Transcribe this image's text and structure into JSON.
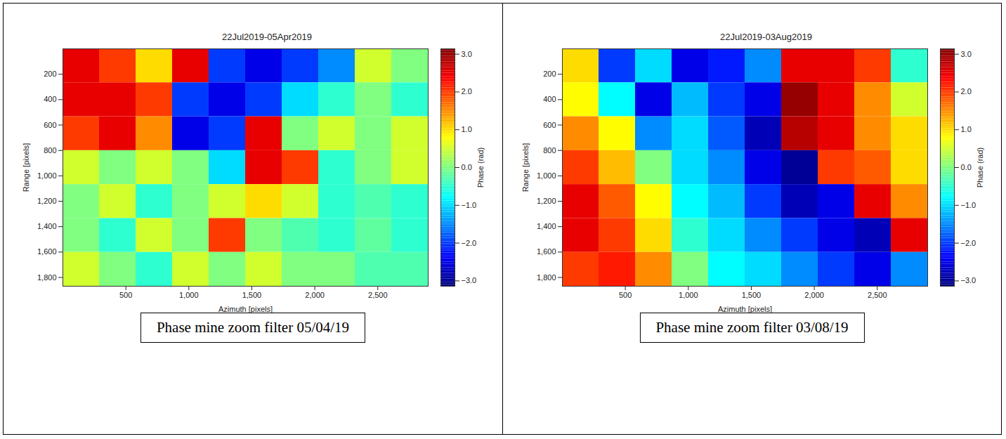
{
  "chart_data": [
    {
      "type": "heatmap",
      "title": "22Jul2019-05Apr2019",
      "xlabel": "Azimuth [pixels]",
      "ylabel": "Range [pixels]",
      "xlim": [
        0,
        2900
      ],
      "ylim": [
        0,
        1869
      ],
      "xticks": [
        500,
        1000,
        1500,
        2000,
        2500
      ],
      "yticks": [
        200,
        400,
        600,
        800,
        1000,
        1200,
        1400,
        1600,
        1800
      ],
      "color": "jet",
      "x_bins": [
        0,
        290,
        580,
        870,
        1160,
        1450,
        1740,
        2030,
        2320,
        2610,
        2900
      ],
      "y_bins": [
        0,
        267,
        534,
        801,
        1068,
        1335,
        1602,
        1869
      ],
      "values": [
        [
          2.5,
          2.0,
          1.0,
          2.5,
          -2.0,
          -2.5,
          -2.0,
          -1.5,
          0.5,
          0.0
        ],
        [
          2.5,
          2.5,
          2.0,
          -2.0,
          -2.5,
          -2.0,
          -1.0,
          -0.5,
          0.0,
          -0.5
        ],
        [
          2.0,
          2.5,
          1.5,
          -2.5,
          -2.0,
          2.5,
          0.0,
          0.5,
          0.0,
          0.5
        ],
        [
          0.5,
          0.0,
          0.5,
          0.0,
          -1.0,
          2.5,
          2.0,
          -0.5,
          0.0,
          0.5
        ],
        [
          0.0,
          0.5,
          -0.5,
          0.0,
          0.5,
          1.0,
          0.5,
          -0.5,
          -0.3,
          -0.5
        ],
        [
          0.0,
          -0.5,
          0.5,
          0.0,
          2.0,
          0.0,
          -0.3,
          -0.5,
          -0.2,
          -0.5
        ],
        [
          0.5,
          0.0,
          -0.5,
          0.5,
          0.0,
          0.5,
          0.0,
          0.0,
          -0.3,
          -0.3
        ]
      ],
      "colorbar": {
        "label": "Phase (rad)",
        "range": [
          -3.1416,
          3.1416
        ],
        "ticks": [
          -3,
          -2,
          -1,
          0,
          1,
          2,
          3
        ]
      },
      "caption": "Phase mine zoom filter 05/04/19"
    },
    {
      "type": "heatmap",
      "title": "22Jul2019-03Aug2019",
      "xlabel": "Azimuth [pixels]",
      "ylabel": "Range [pixels]",
      "xlim": [
        0,
        2900
      ],
      "ylim": [
        0,
        1869
      ],
      "xticks": [
        500,
        1000,
        1500,
        2000,
        2500
      ],
      "yticks": [
        200,
        400,
        600,
        800,
        1000,
        1200,
        1400,
        1600,
        1800
      ],
      "color": "jet",
      "x_bins": [
        0,
        290,
        580,
        870,
        1160,
        1450,
        1740,
        2030,
        2320,
        2610,
        2900
      ],
      "y_bins": [
        0,
        267,
        534,
        801,
        1068,
        1335,
        1602,
        1869
      ],
      "values": [
        [
          1.0,
          -2.0,
          -1.0,
          -2.5,
          -2.2,
          -1.5,
          2.5,
          2.5,
          2.0,
          -0.5
        ],
        [
          0.8,
          -0.8,
          -2.5,
          -1.2,
          -2.0,
          -2.5,
          3.0,
          2.5,
          1.5,
          0.5
        ],
        [
          1.5,
          0.8,
          -1.5,
          -1.0,
          -1.8,
          -2.8,
          2.8,
          2.5,
          1.5,
          1.0
        ],
        [
          2.0,
          1.2,
          0.0,
          -1.0,
          -1.5,
          -2.5,
          -3.0,
          2.0,
          1.8,
          1.0
        ],
        [
          2.5,
          1.8,
          0.8,
          -0.8,
          -1.2,
          -2.0,
          -2.8,
          -2.5,
          2.5,
          1.5
        ],
        [
          2.5,
          2.0,
          1.0,
          -0.5,
          -1.0,
          -1.5,
          -2.0,
          -2.5,
          -2.8,
          2.5
        ],
        [
          2.0,
          2.2,
          1.5,
          0.0,
          -0.8,
          -1.0,
          -1.5,
          -2.0,
          -2.5,
          -1.5
        ]
      ],
      "colorbar": {
        "label": "Phase (rad)",
        "range": [
          -3.1416,
          3.1416
        ],
        "ticks": [
          -3,
          -2,
          -1,
          0,
          1,
          2,
          3
        ]
      },
      "caption": "Phase mine zoom filter 03/08/19"
    }
  ]
}
